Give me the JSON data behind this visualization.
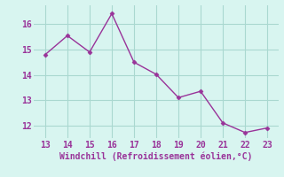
{
  "x": [
    13,
    14,
    15,
    16,
    17,
    18,
    19,
    20,
    21,
    22,
    23
  ],
  "y": [
    14.8,
    15.55,
    14.9,
    16.42,
    14.5,
    14.02,
    13.1,
    13.35,
    12.1,
    11.72,
    11.9
  ],
  "line_color": "#993399",
  "marker": "D",
  "marker_size": 2.5,
  "linewidth": 1.0,
  "xlabel": "Windchill (Refroidissement éolien,°C)",
  "xlabel_color": "#993399",
  "background_color": "#d8f5f0",
  "grid_color": "#aad8d0",
  "tick_color": "#993399",
  "xlim": [
    12.5,
    23.5
  ],
  "ylim": [
    11.5,
    16.75
  ],
  "xticks": [
    13,
    14,
    15,
    16,
    17,
    18,
    19,
    20,
    21,
    22,
    23
  ],
  "yticks": [
    12,
    13,
    14,
    15,
    16
  ],
  "xlabel_fontsize": 7.0,
  "tick_fontsize": 7.0,
  "font_family": "monospace"
}
